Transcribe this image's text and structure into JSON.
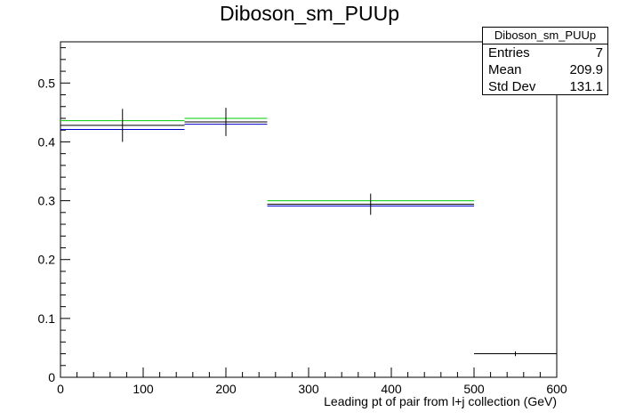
{
  "chart_data": {
    "type": "histogram",
    "title": "Diboson_sm_PUUp",
    "xlabel": "Leading pt of pair from l+j collection (GeV)",
    "ylabel": "",
    "xlim": [
      0,
      600
    ],
    "ylim": [
      0,
      0.57
    ],
    "x_ticks": [
      0,
      100,
      200,
      300,
      400,
      500,
      600
    ],
    "y_ticks": [
      0,
      0.1,
      0.2,
      0.3,
      0.4,
      0.5
    ],
    "grid": false,
    "bins": [
      {
        "low": 0,
        "high": 150,
        "center": 75,
        "value": 0.428,
        "error": 0.028
      },
      {
        "low": 150,
        "high": 250,
        "center": 200,
        "value": 0.434,
        "error": 0.024
      },
      {
        "low": 250,
        "high": 500,
        "center": 375,
        "value": 0.294,
        "error": 0.018
      },
      {
        "low": 500,
        "high": 600,
        "center": 550,
        "value": 0.04,
        "error": 0.004
      }
    ],
    "series": [
      {
        "name": "",
        "color": "#00cc00",
        "values": [
          0.436,
          0.44,
          0.3,
          0.04
        ]
      },
      {
        "name": "",
        "color": "#0000cc",
        "values": [
          0.421,
          0.43,
          0.291,
          0.04
        ]
      }
    ],
    "stats": {
      "name": "Diboson_sm_PUUp",
      "entries_label": "Entries",
      "entries": "7",
      "mean_label": "Mean",
      "mean": "209.9",
      "stddev_label": "Std Dev",
      "stddev": "131.1"
    }
  }
}
